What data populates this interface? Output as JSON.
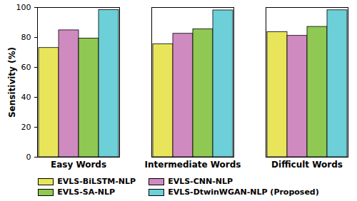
{
  "chart_data": {
    "type": "bar",
    "categories": [
      "Easy Words",
      "Intermediate Words",
      "Difficult Words"
    ],
    "series": [
      {
        "name": "EVLS-BiLSTM-NLP",
        "color": "#e8e55b",
        "values": [
          73.0,
          75.5,
          83.6
        ]
      },
      {
        "name": "EVLS-CNN-NLP",
        "color": "#cf8ac0",
        "values": [
          84.8,
          82.5,
          81.1
        ]
      },
      {
        "name": "EVLS-SA-NLP",
        "color": "#8fc852",
        "values": [
          79.3,
          85.5,
          87.1
        ]
      },
      {
        "name": "EVLS-DtwinWGAN-NLP (Proposed)",
        "color": "#6dcfd8",
        "values": [
          98.3,
          98.1,
          98.2
        ]
      }
    ],
    "y_label": "Sensitivity (%)",
    "ylim": [
      0,
      100
    ],
    "yticks": [
      0,
      20,
      40,
      60,
      80,
      100
    ],
    "grid": false,
    "legend": "bottom"
  }
}
